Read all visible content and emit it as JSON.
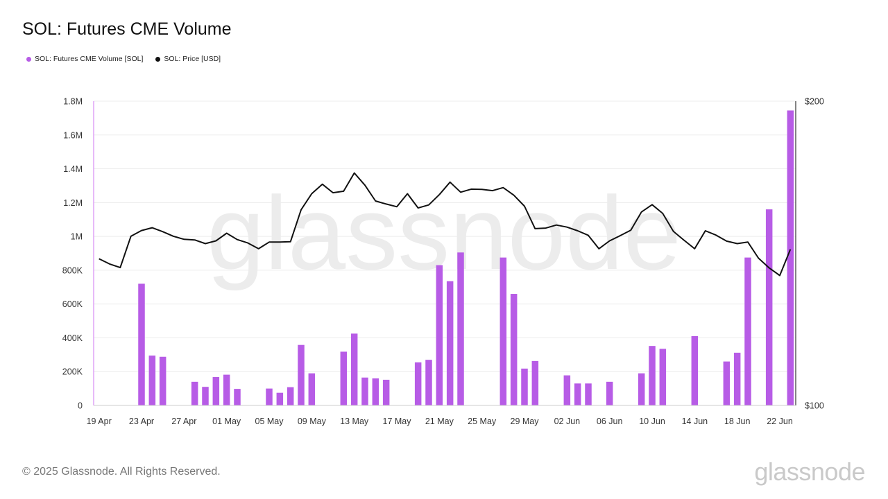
{
  "header": {
    "title": "SOL: Futures CME Volume"
  },
  "legend": [
    {
      "label": "SOL: Futures CME Volume [SOL]",
      "color": "#b75ce6"
    },
    {
      "label": "SOL: Price [USD]",
      "color": "#111111"
    }
  ],
  "watermark": "glassnode",
  "footer": {
    "copyright": "© 2025 Glassnode. All Rights Reserved.",
    "brand": "glassnode"
  },
  "chart_data": {
    "type": "bar",
    "title": "SOL: Futures CME Volume",
    "x_tick_labels": [
      "19 Apr",
      "23 Apr",
      "27 Apr",
      "01 May",
      "05 May",
      "09 May",
      "13 May",
      "17 May",
      "21 May",
      "25 May",
      "29 May",
      "02 Jun",
      "06 Jun",
      "10 Jun",
      "14 Jun",
      "18 Jun",
      "22 Jun"
    ],
    "y_left_ticks": [
      {
        "value": 0,
        "label": "0"
      },
      {
        "value": 200000,
        "label": "200K"
      },
      {
        "value": 400000,
        "label": "400K"
      },
      {
        "value": 600000,
        "label": "600K"
      },
      {
        "value": 800000,
        "label": "800K"
      },
      {
        "value": 1000000,
        "label": "1M"
      },
      {
        "value": 1200000,
        "label": "1.2M"
      },
      {
        "value": 1400000,
        "label": "1.4M"
      },
      {
        "value": 1600000,
        "label": "1.6M"
      },
      {
        "value": 1800000,
        "label": "1.8M"
      }
    ],
    "y_right_ticks": [
      {
        "value": 100,
        "label": "$100"
      },
      {
        "value": 200,
        "label": "$200"
      }
    ],
    "ylim_left": [
      0,
      1800000
    ],
    "ylim_right": [
      100,
      200
    ],
    "grid": true,
    "legend_position": "top-left",
    "x": [
      "19 Apr",
      "20 Apr",
      "21 Apr",
      "22 Apr",
      "23 Apr",
      "24 Apr",
      "25 Apr",
      "26 Apr",
      "27 Apr",
      "28 Apr",
      "29 Apr",
      "30 Apr",
      "01 May",
      "02 May",
      "03 May",
      "04 May",
      "05 May",
      "06 May",
      "07 May",
      "08 May",
      "09 May",
      "10 May",
      "11 May",
      "12 May",
      "13 May",
      "14 May",
      "15 May",
      "16 May",
      "17 May",
      "18 May",
      "19 May",
      "20 May",
      "21 May",
      "22 May",
      "23 May",
      "24 May",
      "25 May",
      "26 May",
      "27 May",
      "28 May",
      "29 May",
      "30 May",
      "31 May",
      "01 Jun",
      "02 Jun",
      "03 Jun",
      "04 Jun",
      "05 Jun",
      "06 Jun",
      "07 Jun",
      "08 Jun",
      "09 Jun",
      "10 Jun",
      "11 Jun",
      "12 Jun",
      "13 Jun",
      "14 Jun",
      "15 Jun",
      "16 Jun",
      "17 Jun",
      "18 Jun",
      "19 Jun",
      "20 Jun",
      "21 Jun",
      "22 Jun",
      "23 Jun"
    ],
    "series": [
      {
        "name": "SOL: Futures CME Volume [SOL]",
        "type": "bar",
        "axis": "left",
        "color": "#b75ce6",
        "values": [
          0,
          0,
          0,
          0,
          720000,
          295000,
          288000,
          0,
          0,
          140000,
          110000,
          168000,
          182000,
          98000,
          0,
          0,
          100000,
          75000,
          108000,
          358000,
          190000,
          0,
          0,
          318000,
          425000,
          165000,
          160000,
          152000,
          0,
          0,
          255000,
          270000,
          830000,
          735000,
          905000,
          0,
          0,
          0,
          875000,
          660000,
          218000,
          263000,
          0,
          0,
          178000,
          130000,
          130000,
          0,
          140000,
          0,
          0,
          190000,
          352000,
          335000,
          0,
          0,
          410000,
          0,
          0,
          260000,
          312000,
          875000,
          0,
          1160000,
          0,
          1745000
        ]
      },
      {
        "name": "SOL: Price [USD]",
        "type": "line",
        "axis": "right",
        "color": "#111111",
        "values": [
          148.2,
          146.5,
          145.3,
          155.6,
          157.5,
          158.4,
          157.1,
          155.6,
          154.6,
          154.4,
          153.2,
          154.1,
          156.6,
          154.5,
          153.4,
          151.5,
          153.7,
          153.7,
          153.8,
          164.3,
          169.6,
          172.7,
          169.9,
          170.4,
          176.4,
          172.4,
          167.2,
          166.2,
          165.3,
          169.6,
          164.9,
          165.9,
          169.3,
          173.4,
          170.1,
          171.1,
          171.0,
          170.6,
          171.6,
          169.1,
          165.5,
          158.1,
          158.3,
          159.3,
          158.6,
          157.4,
          155.9,
          151.5,
          154.1,
          155.8,
          157.6,
          163.6,
          166.0,
          163.1,
          157.2,
          154.3,
          151.5,
          157.4,
          156.0,
          154.0,
          153.2,
          153.7,
          148.4,
          145.2,
          142.7,
          151.3
        ]
      }
    ]
  }
}
